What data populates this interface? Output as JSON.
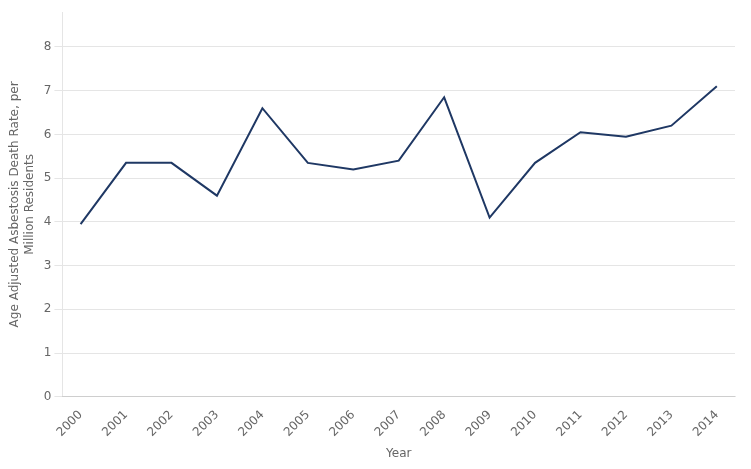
{
  "chart_data": {
    "type": "line",
    "x": [
      2000,
      2001,
      2002,
      2003,
      2004,
      2005,
      2006,
      2007,
      2008,
      2009,
      2010,
      2011,
      2012,
      2013,
      2014
    ],
    "values": [
      3.95,
      5.35,
      5.35,
      4.6,
      6.6,
      5.35,
      5.2,
      5.4,
      6.85,
      4.1,
      5.35,
      6.05,
      5.95,
      6.2,
      7.1
    ],
    "color": "#1F3864",
    "xlabel": "Year",
    "ylabel": "Age Adjusted Asbestosis Death Rate, per\nMillion Residents",
    "xlim": [
      1999.6,
      2014.4
    ],
    "xticks": [
      2000,
      2001,
      2002,
      2003,
      2004,
      2005,
      2006,
      2007,
      2008,
      2009,
      2010,
      2011,
      2012,
      2013,
      2014
    ],
    "ylim": [
      0,
      8.8
    ],
    "yticks": [
      0,
      1,
      2,
      3,
      4,
      5,
      6,
      7,
      8
    ],
    "grid": true
  }
}
